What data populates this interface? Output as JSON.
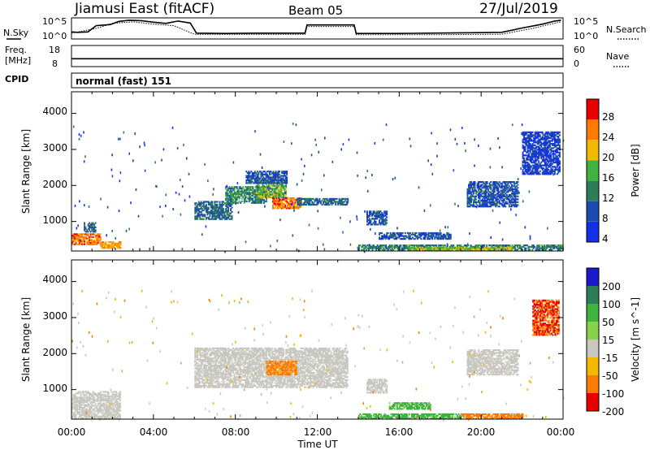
{
  "header": {
    "station": "Jiamusi East (fitACF)",
    "beam": "Beam 05",
    "date": "27/Jul/2019"
  },
  "noise_panel": {
    "left_label": "N.Sky",
    "left_ticks": [
      "10^5",
      "10^0"
    ],
    "right_ticks": [
      "10^5",
      "10^0"
    ],
    "right_label": "N.Search",
    "nsky_series": [
      [
        0,
        1.6
      ],
      [
        0.3,
        1.5
      ],
      [
        0.8,
        1.6
      ],
      [
        1.2,
        3.2
      ],
      [
        1.9,
        3.5
      ],
      [
        2.3,
        4.3
      ],
      [
        2.8,
        4.6
      ],
      [
        3.4,
        4.5
      ],
      [
        4.0,
        4.1
      ],
      [
        4.6,
        3.8
      ],
      [
        5.2,
        4.4
      ],
      [
        5.8,
        3.9
      ],
      [
        6.1,
        1.3
      ],
      [
        7.5,
        1.2
      ],
      [
        9.0,
        1.3
      ],
      [
        10.5,
        1.3
      ],
      [
        11.4,
        1.3
      ],
      [
        11.5,
        3.4
      ],
      [
        13.8,
        3.4
      ],
      [
        13.9,
        1.2
      ],
      [
        15.8,
        1.2
      ],
      [
        17.5,
        1.3
      ],
      [
        19.5,
        1.4
      ],
      [
        21.0,
        1.5
      ],
      [
        22.0,
        2.6
      ],
      [
        23.0,
        3.6
      ],
      [
        23.6,
        4.4
      ],
      [
        23.9,
        4.6
      ]
    ],
    "nsearch_series": [
      [
        0,
        1.3
      ],
      [
        1.2,
        2.5
      ],
      [
        2.0,
        3.8
      ],
      [
        3.0,
        4.2
      ],
      [
        4.0,
        3.6
      ],
      [
        5.0,
        3.2
      ],
      [
        6.0,
        1.0
      ],
      [
        8.0,
        1.0
      ],
      [
        11.4,
        1.0
      ],
      [
        11.5,
        3.0
      ],
      [
        13.8,
        3.0
      ],
      [
        13.9,
        0.9
      ],
      [
        18.0,
        0.9
      ],
      [
        21.0,
        1.0
      ],
      [
        22.5,
        2.5
      ],
      [
        23.9,
        4.2
      ]
    ]
  },
  "freq_panel": {
    "left_label_1": "Freq.",
    "left_label_2": "[MHz]",
    "left_ticks": [
      "18",
      "8"
    ],
    "right_ticks": [
      "60",
      "0"
    ],
    "right_label": "Nave",
    "freq_value": 11.6,
    "nave_value": 22
  },
  "cpid": {
    "label": "CPID",
    "text": "normal (fast) 151"
  },
  "power_panel": {
    "ylabel": "Slant Range [km]",
    "yticks": [
      "1000",
      "2000",
      "3000",
      "4000"
    ],
    "colorbar_label": "Power [dB]",
    "colorbar_ticks": [
      "4",
      "8",
      "12",
      "16",
      "20",
      "24",
      "28"
    ],
    "colorbar_colors": [
      "#1430e6",
      "#1c4bb0",
      "#2e7d5a",
      "#3fb23f",
      "#f5b800",
      "#ff7a00",
      "#e60000"
    ]
  },
  "velocity_panel": {
    "ylabel": "Slant Range [km]",
    "yticks": [
      "1000",
      "2000",
      "3000",
      "4000"
    ],
    "colorbar_label": "Velocity [m s^-1]",
    "colorbar_ticks": [
      "200",
      "100",
      "50",
      "15",
      "-15",
      "-50",
      "-100",
      "-200"
    ],
    "colorbar_colors": [
      "#1a1acc",
      "#2e7d5a",
      "#3fb23f",
      "#88d14a",
      "#c8c8c0",
      "#f5b800",
      "#ff7a00",
      "#e60000"
    ]
  },
  "x_axis": {
    "label": "Time UT",
    "ticks": [
      "00:00",
      "04:00",
      "08:00",
      "12:00",
      "16:00",
      "20:00",
      "00:00"
    ]
  },
  "chart_data": {
    "type": "heatmap",
    "x_range_hours": [
      0,
      24
    ],
    "y_range_km": [
      180,
      4600
    ],
    "power_regions_db": [
      {
        "t0": 0.0,
        "t1": 1.4,
        "r0": 350,
        "r1": 650,
        "value": 24
      },
      {
        "t0": 0.6,
        "t1": 1.2,
        "r0": 700,
        "r1": 950,
        "value": 10
      },
      {
        "t0": 1.4,
        "t1": 2.4,
        "r0": 250,
        "r1": 450,
        "value": 22
      },
      {
        "t0": 6.0,
        "t1": 7.8,
        "r0": 1050,
        "r1": 1550,
        "value": 10
      },
      {
        "t0": 7.5,
        "t1": 9.5,
        "r0": 1500,
        "r1": 1950,
        "value": 12
      },
      {
        "t0": 9.0,
        "t1": 10.5,
        "r0": 1650,
        "r1": 2150,
        "value": 16
      },
      {
        "t0": 9.8,
        "t1": 11.2,
        "r0": 1350,
        "r1": 1650,
        "value": 24
      },
      {
        "t0": 11.0,
        "t1": 13.5,
        "r0": 1450,
        "r1": 1650,
        "value": 10
      },
      {
        "t0": 8.5,
        "t1": 10.5,
        "r0": 2050,
        "r1": 2400,
        "value": 8
      },
      {
        "t0": 14.4,
        "t1": 15.4,
        "r0": 900,
        "r1": 1300,
        "value": 8
      },
      {
        "t0": 15.0,
        "t1": 18.5,
        "r0": 500,
        "r1": 700,
        "value": 8
      },
      {
        "t0": 14.0,
        "t1": 24.0,
        "r0": 200,
        "r1": 350,
        "value": 12
      },
      {
        "t0": 19.3,
        "t1": 21.8,
        "r0": 1400,
        "r1": 2100,
        "value": 8
      },
      {
        "t0": 22.0,
        "t1": 23.8,
        "r0": 2300,
        "r1": 3500,
        "value": 6
      },
      {
        "t0": 16.5,
        "t1": 21.5,
        "r0": 180,
        "r1": 300,
        "value": 18
      }
    ],
    "velocity_regions_ms": [
      {
        "t0": 0.0,
        "t1": 2.4,
        "r0": 200,
        "r1": 950,
        "value": 0
      },
      {
        "t0": 6.0,
        "t1": 13.5,
        "r0": 1050,
        "r1": 2150,
        "value": 0
      },
      {
        "t0": 9.5,
        "t1": 11.0,
        "r0": 1400,
        "r1": 1800,
        "value": -40
      },
      {
        "t0": 14.4,
        "t1": 15.4,
        "r0": 900,
        "r1": 1300,
        "value": 0
      },
      {
        "t0": 15.5,
        "t1": 17.5,
        "r0": 450,
        "r1": 650,
        "value": 40
      },
      {
        "t0": 14.0,
        "t1": 19.0,
        "r0": 180,
        "r1": 330,
        "value": 40
      },
      {
        "t0": 19.0,
        "t1": 22.0,
        "r0": 180,
        "r1": 330,
        "value": -60
      },
      {
        "t0": 19.3,
        "t1": 21.8,
        "r0": 1400,
        "r1": 2100,
        "value": 0
      },
      {
        "t0": 22.5,
        "t1": 23.8,
        "r0": 2500,
        "r1": 3500,
        "value": -150
      }
    ]
  }
}
